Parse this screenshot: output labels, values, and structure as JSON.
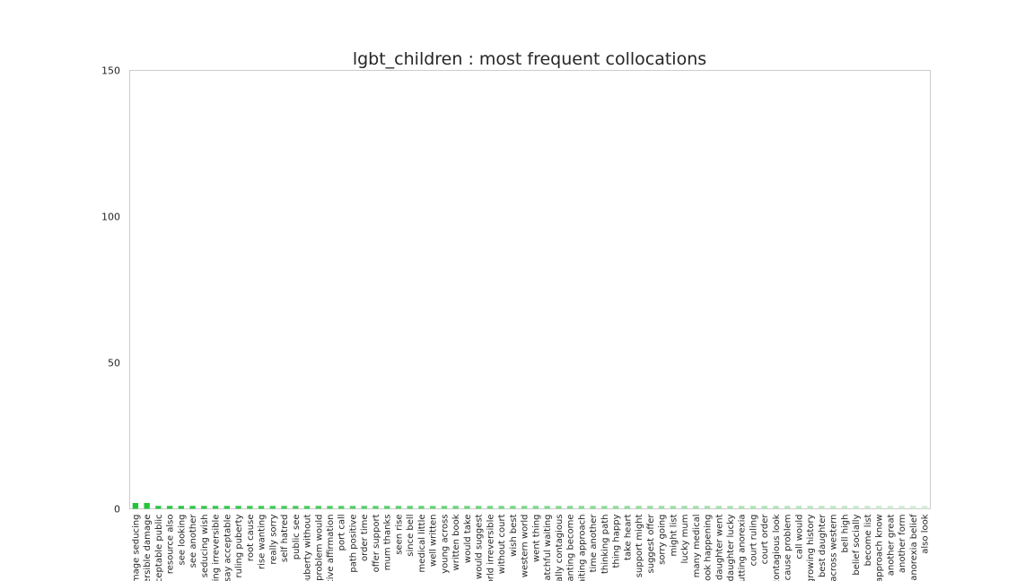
{
  "chart_data": {
    "type": "bar",
    "title": "lgbt_children : most frequent collocations",
    "xlabel": "",
    "ylabel": "",
    "ylim": [
      0,
      150
    ],
    "yticks": [
      0,
      50,
      100,
      150
    ],
    "grid": false,
    "categories": [
      "image seducing",
      "reversible damage",
      "acceptable public",
      "resource also",
      "see looking",
      "see another",
      "seducing wish",
      "seeing irreversible",
      "essay acceptable",
      "ruling puberty",
      "root cause",
      "rise wanting",
      "really sorry",
      "self hatred",
      "public see",
      "puberty without",
      "problem would",
      "positive affirmation",
      "port call",
      "path positive",
      "order time",
      "offer support",
      "mum thanks",
      "seen rise",
      "since bell",
      "medical little",
      "well written",
      "young across",
      "written book",
      "would take",
      "would suggest",
      "world irreversible",
      "without court",
      "wish best",
      "western world",
      "went thing",
      "watchful waiting",
      "socially contagious",
      "wanting become",
      "waiting approach",
      "time another",
      "thinking path",
      "thing happy",
      "take heart",
      "support might",
      "suggest offer",
      "sorry going",
      "might list",
      "lucky mum",
      "many medical",
      "look happening",
      "daughter went",
      "daughter lucky",
      "cutting anorexia",
      "court ruling",
      "court order",
      "contagious look",
      "cause problem",
      "call would",
      "growing history",
      "best daughter",
      "across western",
      "bell high",
      "belief socially",
      "become list",
      "approach know",
      "another great",
      "another form",
      "anorexia belief",
      "also look"
    ],
    "values": [
      2,
      2,
      1,
      1,
      1,
      1,
      1,
      1,
      1,
      1,
      1,
      1,
      1,
      1,
      1,
      1,
      1,
      1,
      1,
      1,
      1,
      1,
      1,
      1,
      1,
      1,
      1,
      1,
      1,
      1,
      1,
      1,
      1,
      1,
      1,
      1,
      1,
      1,
      1,
      1,
      1,
      1,
      1,
      1,
      1,
      1,
      1,
      1,
      1,
      1,
      1,
      1,
      1,
      1,
      1,
      1,
      1,
      1,
      1,
      1,
      1,
      1,
      1,
      1,
      1,
      1,
      1,
      1,
      1,
      1
    ],
    "bar_color_start": "#22c43a",
    "bar_color_end": "#d6ecd9",
    "frame_color": "#cccccc"
  }
}
